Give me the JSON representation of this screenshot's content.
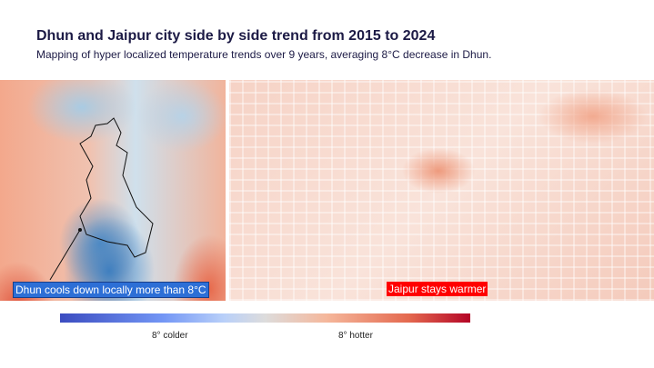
{
  "title": "Dhun and Jaipur city side by side trend from 2015 to 2024",
  "subtitle": "Mapping of hyper localized temperature trends over 9 years, averaging 8°C decrease in Dhun.",
  "chart_data": {
    "type": "heatmap",
    "title": "Dhun and Jaipur city side by side trend from 2015 to 2024",
    "panels": [
      "Dhun",
      "Jaipur"
    ],
    "annotations": [
      "Dhun cools down locally more than 8°C",
      "Jaipur stays warmer"
    ],
    "colorbar": {
      "min_label": "8° colder",
      "max_label": "8° hotter",
      "range": [
        -8,
        8
      ],
      "colors": [
        "#3b4cc0",
        "#dddcdc",
        "#b40426"
      ]
    }
  }
}
